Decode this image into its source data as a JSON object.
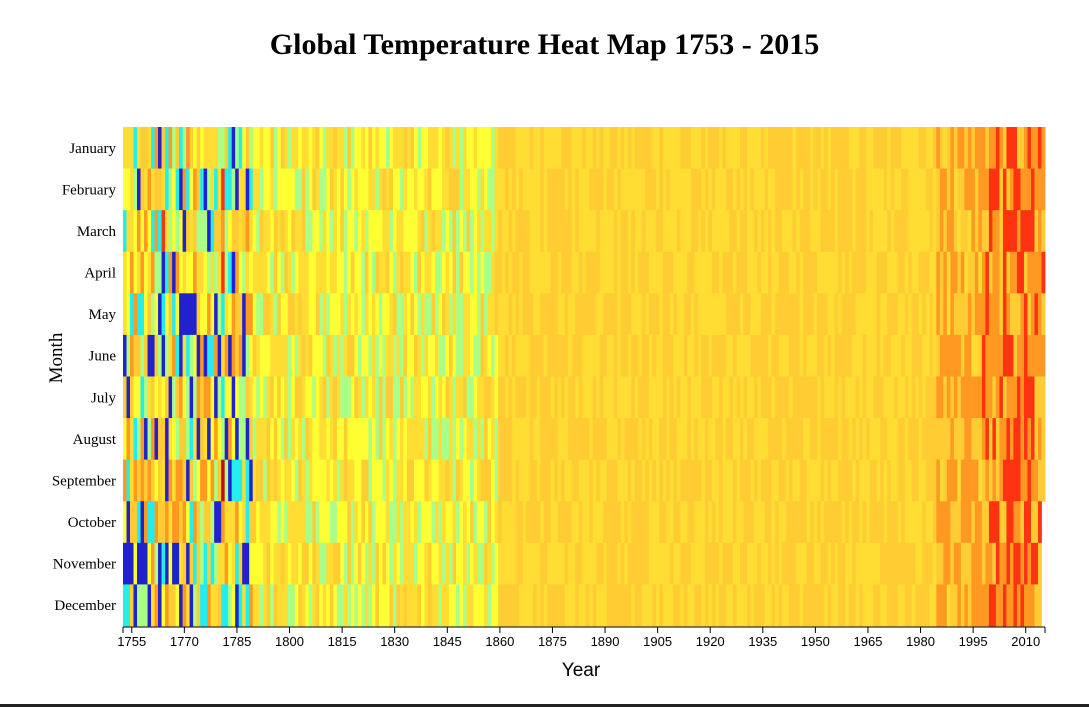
{
  "title": "Global Temperature Heat Map 1753 - 2015",
  "chart_data": {
    "type": "heatmap",
    "title": "Global Temperature Heat Map 1753 - 2015",
    "xlabel": "Year",
    "ylabel": "Month",
    "x_range": [
      1753,
      2015
    ],
    "months": [
      "January",
      "February",
      "March",
      "April",
      "May",
      "June",
      "July",
      "August",
      "September",
      "October",
      "November",
      "December"
    ],
    "x_ticks": [
      "1755",
      "1770",
      "1785",
      "1800",
      "1815",
      "1830",
      "1845",
      "1860",
      "1875",
      "1890",
      "1905",
      "1920",
      "1935",
      "1950",
      "1965",
      "1980",
      "1995",
      "2010"
    ],
    "palette": [
      "#2222cc",
      "#22eeee",
      "#aaff88",
      "#ffff33",
      "#ffdd33",
      "#ffcc33",
      "#ff9922",
      "#ff3311",
      "#bb1111"
    ],
    "legend": "none"
  }
}
